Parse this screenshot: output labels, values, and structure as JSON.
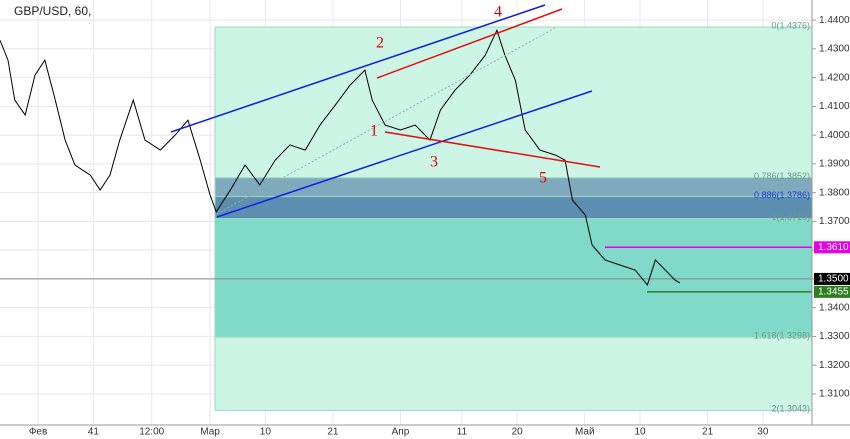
{
  "chart_data": {
    "type": "line",
    "title": "GBP/USD, 60,",
    "annotations": [
      "1",
      "2",
      "3",
      "4",
      "5"
    ],
    "series": [
      {
        "name": "GBP/USD",
        "color": "#000000",
        "x": [
          25.8,
          27.1,
          28.2,
          29.9,
          31.5,
          33.1,
          34.8,
          36.4,
          38.0,
          40.5,
          42.1,
          43.7,
          45.3,
          47.5,
          49.4,
          51.9,
          54.3,
          56.4,
          58.4,
          60.0,
          61.0,
          63.3,
          65.7,
          68.1,
          70.6,
          73.0,
          75.5,
          77.9,
          80.4,
          82.8,
          85.2,
          86.4,
          88.5,
          91.0,
          93.4,
          95.8,
          97.5,
          99.9,
          102.3,
          104.8,
          106.7,
          108.0,
          109.7,
          111.3,
          113.7,
          116.2,
          117.8,
          119.0,
          121.1,
          122.2,
          124.3,
          126.8,
          129.2,
          131.2,
          132.5,
          134.1,
          135.7,
          136.5
        ],
        "values": [
          1.433,
          1.4261,
          1.4122,
          1.407,
          1.4209,
          1.4261,
          1.4122,
          1.3983,
          1.3896,
          1.3861,
          1.3809,
          1.3861,
          1.3983,
          1.4122,
          1.3983,
          1.3948,
          1.4,
          1.4052,
          1.3913,
          1.3792,
          1.3733,
          1.3809,
          1.3896,
          1.3827,
          1.3913,
          1.3966,
          1.3948,
          1.4035,
          1.4105,
          1.4174,
          1.4226,
          1.4122,
          1.4035,
          1.4018,
          1.4035,
          1.3983,
          1.4087,
          1.4157,
          1.4209,
          1.4278,
          1.4365,
          1.4278,
          1.4191,
          1.4018,
          1.3948,
          1.3931,
          1.3913,
          1.3774,
          1.3722,
          1.3618,
          1.3566,
          1.3548,
          1.3531,
          1.3479,
          1.3566,
          1.3531,
          1.3496,
          1.3486
        ]
      }
    ],
    "fib_levels": [
      {
        "label": "0(1.4376)",
        "value": 1.4376,
        "color": "#cdf5e6",
        "label_color": "#6a9a8a"
      },
      {
        "label": "0.786(1.3852)",
        "value": 1.3852,
        "color": "#7fa9bd",
        "label_color": "#6a9a8a"
      },
      {
        "label": "0.886(1.3786)",
        "value": 1.3786,
        "color": "#5b8eb0",
        "label_color": "#1a3fcf"
      },
      {
        "label": "1(1.3710)",
        "value": 1.371,
        "color": "#80d9c9",
        "label_color": "#6a9a8a"
      },
      {
        "label": "1.618(1.3298)",
        "value": 1.3298,
        "color": "#cdf5e6",
        "label_color": "#6a9a8a"
      },
      {
        "label": "2(1.3043)",
        "value": 1.3043,
        "color": "#cdf5e6",
        "label_color": "#6a9a8a"
      }
    ],
    "price_labels": [
      {
        "label": "1.3610",
        "value": 1.361,
        "color": "#e600e6"
      },
      {
        "label": "1.3500",
        "value": 1.35,
        "color": "#000000"
      },
      {
        "label": "1.3455",
        "value": 1.3455,
        "color": "#2e7d1e"
      }
    ],
    "xlim": [
      25.8,
      158
    ],
    "xticks": [
      {
        "value": 32,
        "label": "Фев"
      },
      41,
      {
        "value": 50.5,
        "label": "12:00"
      },
      {
        "value": 60,
        "label": "Мар"
      },
      {
        "value": 69,
        "label": "10"
      },
      {
        "value": 80,
        "label": "21"
      },
      {
        "value": 91,
        "label": "Апр"
      },
      {
        "value": 101,
        "label": "11"
      },
      {
        "value": 110,
        "label": "20"
      },
      {
        "value": 121,
        "label": "Май"
      },
      {
        "value": 130,
        "label": "10"
      },
      {
        "value": 141,
        "label": "21"
      },
      {
        "value": 150,
        "label": "30"
      }
    ],
    "ylim": [
      1.2992,
      1.447
    ],
    "yticks": [
      {
        "value": 1.31,
        "label": "1.3100"
      },
      {
        "value": 1.32,
        "label": "1.3200"
      },
      {
        "value": 1.33,
        "label": "1.3300"
      },
      {
        "value": 1.34,
        "label": "1.3400"
      },
      {
        "value": 1.35,
        "label": "1.3500"
      },
      {
        "value": 1.36,
        "label": "1.3600"
      },
      {
        "value": 1.37,
        "label": "1.3700"
      },
      {
        "value": 1.38,
        "label": "1.3800"
      },
      {
        "value": 1.39,
        "label": "1.3900"
      },
      {
        "value": 1.4,
        "label": "1.4000"
      },
      {
        "value": 1.41,
        "label": "1.4100"
      },
      {
        "value": 1.42,
        "label": "1.4200"
      },
      {
        "value": 1.43,
        "label": "1.4300"
      },
      {
        "value": 1.44,
        "label": "1.4400"
      }
    ],
    "grid": true
  }
}
